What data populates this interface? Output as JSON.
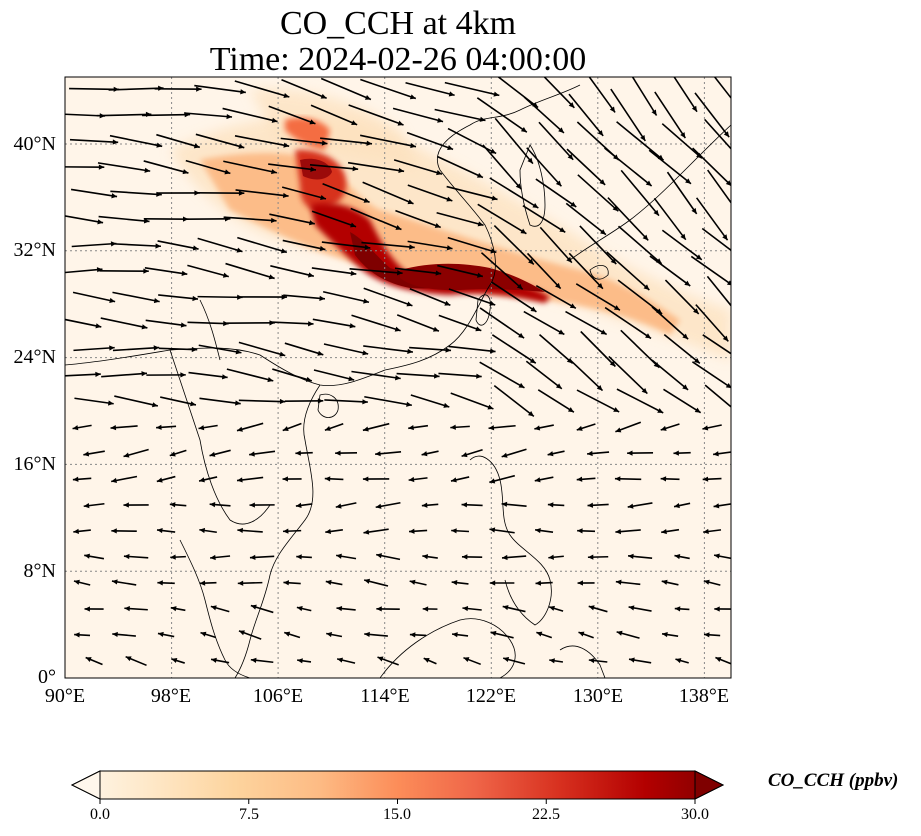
{
  "title_line1": "CO_CCH at 4km",
  "title_line2": "Time: 2024-02-26 04:00:00",
  "map": {
    "extent": {
      "lon": [
        90,
        140
      ],
      "lat": [
        0,
        45
      ]
    },
    "projection": "PlateCarree",
    "gridlines": "dotted gray",
    "lon_ticks": [
      "90°E",
      "98°E",
      "106°E",
      "114°E",
      "122°E",
      "130°E",
      "138°E"
    ],
    "lat_ticks": [
      "0°",
      "8°N",
      "16°N",
      "24°N",
      "32°N",
      "40°N"
    ],
    "coastlines": true,
    "borders": true
  },
  "colorbar": {
    "label": "CO_CCH (ppbv)",
    "ticks": [
      "0.0",
      "7.5",
      "15.0",
      "22.5",
      "30.0"
    ],
    "min": 0,
    "max": 30,
    "colormap": "OrRd",
    "extend": "both",
    "colors": [
      "#fff7ec",
      "#fee8c8",
      "#fdd49e",
      "#fdbb84",
      "#fc8d59",
      "#ef6548",
      "#d7301f",
      "#b30000",
      "#7f0000"
    ]
  },
  "wind": {
    "units": "arrows indicate wind direction/speed",
    "arrow_color": "#000000"
  }
}
